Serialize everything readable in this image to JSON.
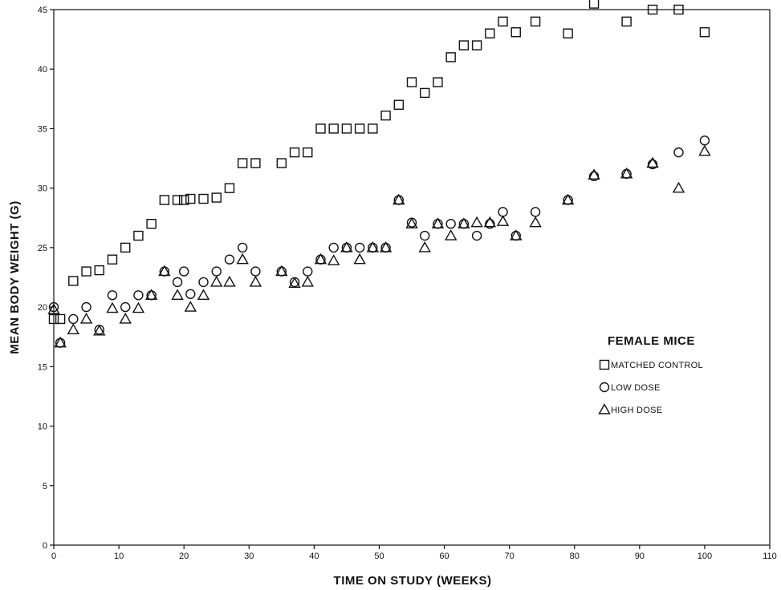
{
  "chart_data": {
    "type": "scatter",
    "xlabel": "TIME ON STUDY (WEEKS)",
    "ylabel": "MEAN BODY WEIGHT (G)",
    "xlim": [
      0,
      110
    ],
    "ylim": [
      0,
      45
    ],
    "xticks": [
      0,
      10,
      20,
      30,
      40,
      50,
      60,
      70,
      80,
      90,
      100,
      110
    ],
    "yticks": [
      0,
      5,
      10,
      15,
      20,
      25,
      30,
      35,
      40,
      45
    ],
    "grid": false,
    "legend": {
      "title": "FEMALE MICE",
      "placement": "right",
      "entries": [
        {
          "label": "MATCHED CONTROL",
          "marker": "square"
        },
        {
          "label": "LOW DOSE",
          "marker": "circle"
        },
        {
          "label": "HIGH DOSE",
          "marker": "triangle"
        }
      ]
    },
    "series": [
      {
        "name": "MATCHED CONTROL",
        "marker": "square",
        "x": [
          0,
          1,
          3,
          5,
          7,
          9,
          11,
          13,
          15,
          17,
          19,
          20,
          21,
          23,
          25,
          27,
          29,
          31,
          35,
          37,
          39,
          41,
          43,
          45,
          47,
          49,
          51,
          53,
          55,
          57,
          59,
          61,
          63,
          65,
          67,
          69,
          71,
          74,
          79,
          83,
          88,
          92,
          96,
          100
        ],
        "y": [
          19,
          19,
          22.2,
          23,
          23.1,
          24,
          25,
          26,
          27,
          29,
          29,
          29,
          29.1,
          29.1,
          29.2,
          30,
          32.1,
          32.1,
          32.1,
          33,
          33,
          35,
          35,
          35,
          35,
          35,
          36.1,
          37,
          38.9,
          38,
          38.9,
          41,
          42,
          42,
          43,
          44,
          43.1,
          44,
          43,
          45.5,
          44,
          45,
          45,
          43.1
        ]
      },
      {
        "name": "LOW DOSE",
        "marker": "circle",
        "x": [
          0,
          1,
          3,
          5,
          7,
          9,
          11,
          13,
          15,
          17,
          19,
          20,
          21,
          23,
          25,
          27,
          29,
          31,
          35,
          37,
          39,
          41,
          43,
          45,
          47,
          49,
          51,
          53,
          55,
          57,
          59,
          61,
          63,
          65,
          67,
          69,
          71,
          74,
          79,
          83,
          88,
          92,
          96,
          100
        ],
        "y": [
          20,
          17,
          19,
          20,
          18.1,
          21,
          20,
          21,
          21,
          23,
          22.1,
          23,
          21.1,
          22.1,
          23,
          24,
          25,
          23,
          23,
          22.1,
          23,
          24,
          25,
          25,
          25,
          25,
          25,
          29,
          27.1,
          26,
          27,
          27,
          27,
          26,
          27,
          28,
          26,
          28,
          29,
          31,
          31.2,
          32,
          33,
          34
        ]
      },
      {
        "name": "HIGH DOSE",
        "marker": "triangle",
        "x": [
          0,
          1,
          3,
          5,
          7,
          9,
          11,
          13,
          15,
          17,
          19,
          21,
          23,
          25,
          27,
          29,
          31,
          35,
          37,
          39,
          41,
          43,
          45,
          47,
          49,
          51,
          53,
          55,
          57,
          59,
          61,
          63,
          65,
          67,
          69,
          71,
          74,
          79,
          83,
          88,
          92,
          96,
          100
        ],
        "y": [
          19.8,
          17,
          18.1,
          19,
          18,
          19.9,
          19,
          19.9,
          21,
          23,
          21,
          20,
          21,
          22.1,
          22.1,
          24,
          22.1,
          23,
          22,
          22.1,
          24,
          23.9,
          25,
          24,
          25,
          25,
          29,
          27,
          25,
          27,
          26,
          27,
          27.1,
          27.1,
          27.2,
          26,
          27.1,
          29,
          31.1,
          31.2,
          32.1,
          30,
          33.1
        ]
      }
    ]
  }
}
